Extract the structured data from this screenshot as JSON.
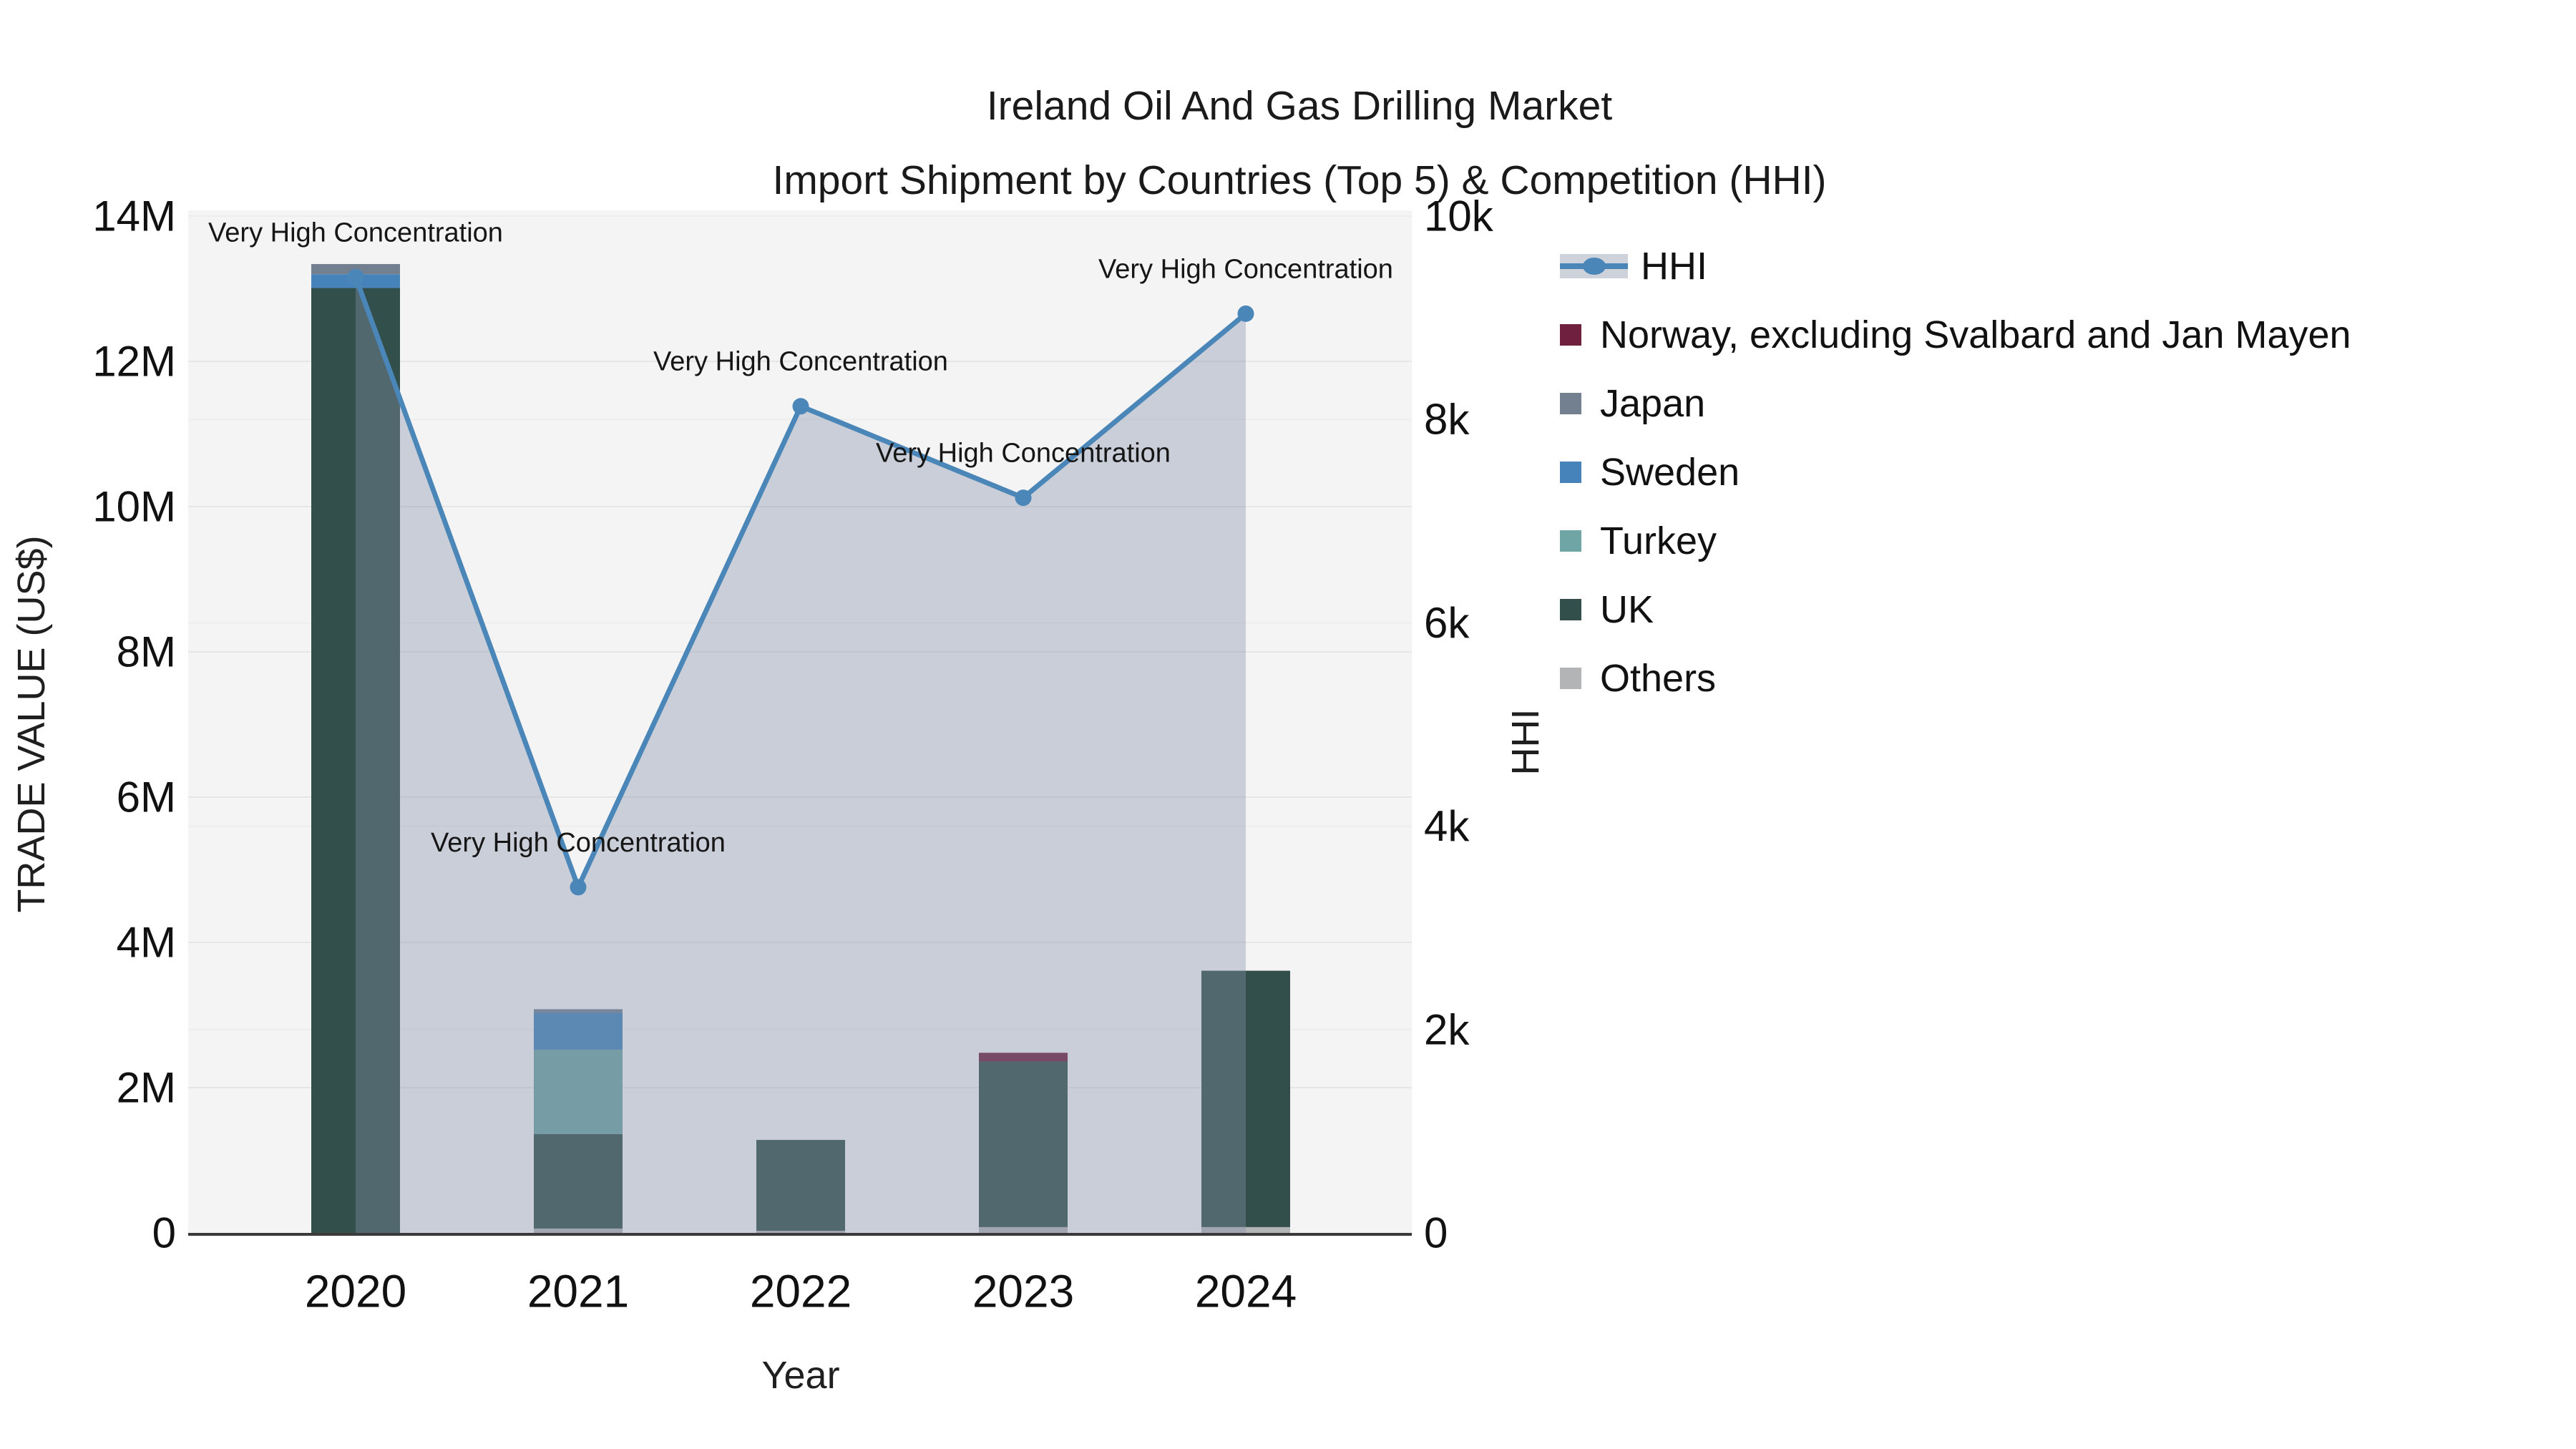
{
  "title": {
    "line1": "Ireland Oil And Gas Drilling Market",
    "line2": "Import Shipment by Countries (Top 5) & Competition (HHI)"
  },
  "chart_data": {
    "type": "combo-stacked-bar-line",
    "categories": [
      "2020",
      "2021",
      "2022",
      "2023",
      "2024"
    ],
    "xlabel": "Year",
    "left_axis": {
      "label": "TRADE VALUE (US$)",
      "ticks": [
        "0",
        "2M",
        "4M",
        "6M",
        "8M",
        "10M",
        "12M",
        "14M"
      ],
      "range": [
        0,
        14000000
      ]
    },
    "right_axis": {
      "label": "HHI",
      "ticks": [
        "0",
        "2k",
        "4k",
        "6k",
        "8k",
        "10k"
      ],
      "range": [
        0,
        10000
      ]
    },
    "stack_order": "bar_series listed bottom-to-top",
    "bar_series": [
      {
        "name": "Others",
        "color": "#b3b4b6",
        "values": [
          0,
          60000,
          30000,
          80000,
          80000
        ]
      },
      {
        "name": "UK",
        "color": "#334f4b",
        "values": [
          13010000,
          1300000,
          1250000,
          2280000,
          3530000
        ]
      },
      {
        "name": "Turkey",
        "color": "#6fa5a4",
        "values": [
          0,
          1160000,
          0,
          0,
          0
        ]
      },
      {
        "name": "Sweden",
        "color": "#4583ba",
        "values": [
          190000,
          510000,
          0,
          0,
          0
        ]
      },
      {
        "name": "Japan",
        "color": "#73808f",
        "values": [
          140000,
          50000,
          0,
          0,
          0
        ]
      },
      {
        "name": "Norway, excluding Svalbard and Jan Mayen",
        "color": "#70203f",
        "values": [
          0,
          0,
          0,
          120000,
          0
        ]
      }
    ],
    "line_series": {
      "name": "HHI",
      "color": "#4a86b8",
      "area_fill": "rgba(131,144,170,0.38)",
      "values": [
        9400,
        3400,
        8130,
        7230,
        9040
      ]
    },
    "annotations": [
      "Very High Concentration",
      "Very High Concentration",
      "Very High Concentration",
      "Very High Concentration",
      "Very High Concentration"
    ],
    "legend": [
      {
        "label": "HHI",
        "type": "line",
        "color": "#4a86b8"
      },
      {
        "label": "Norway, excluding Svalbard and Jan Mayen",
        "type": "swatch",
        "color": "#70203f"
      },
      {
        "label": "Japan",
        "type": "swatch",
        "color": "#73808f"
      },
      {
        "label": "Sweden",
        "type": "swatch",
        "color": "#4583ba"
      },
      {
        "label": "Turkey",
        "type": "swatch",
        "color": "#6fa5a4"
      },
      {
        "label": "UK",
        "type": "swatch",
        "color": "#334f4b"
      },
      {
        "label": "Others",
        "type": "swatch",
        "color": "#b3b4b6"
      }
    ],
    "plot_colors": {
      "plot_background": "#f4f4f4",
      "grid_left": "#e6e6e6",
      "grid_right": "#ededed",
      "axis_line": "#3a3a3a"
    }
  }
}
